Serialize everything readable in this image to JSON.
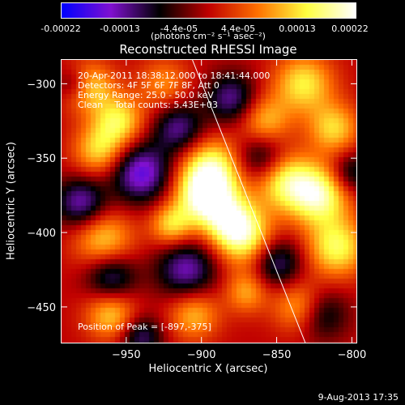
{
  "chart_data": {
    "type": "heatmap",
    "title": "Reconstructed RHESSI Image",
    "xlabel": "Heliocentric X (arcsec)",
    "ylabel": "Heliocentric Y (arcsec)",
    "xlim": [
      -993,
      -797
    ],
    "ylim": [
      -474,
      -284
    ],
    "xticks": [
      -950,
      -900,
      -850,
      -800
    ],
    "yticks": [
      -300,
      -350,
      -400,
      -450
    ],
    "xtick_labels": [
      "−950",
      "−900",
      "−850",
      "−800"
    ],
    "ytick_labels": [
      "−300",
      "−350",
      "−400",
      "−450"
    ],
    "colorbar": {
      "ticks": [
        "-0.00022",
        "-0.00013",
        "-4.4e-05",
        "4.4e-05",
        "0.00013",
        "0.00022"
      ],
      "range": [
        -0.00022,
        0.00022
      ],
      "unit": "(photons cm⁻² s⁻¹ asec⁻²)"
    },
    "annotations": {
      "time": "20-Apr-2011 18:38:12.000 to 18:41:44.000",
      "detectors": "Detectors: 4F 5F 6F 7F 8F, Att 0",
      "energy": "Energy Range: 25.0 - 50.0 keV",
      "clean": "Clean    Total counts: 5.43E+03",
      "peak": "Position of Peak = [-897,-375]"
    },
    "peak": [
      -897,
      -375
    ],
    "limb_line": [
      [
        -906,
        -284
      ],
      [
        -831,
        -474
      ]
    ],
    "colormap": [
      "#0000ff",
      "#8010d0",
      "#000000",
      "#c00000",
      "#ff7000",
      "#ffff40",
      "#ffffff"
    ],
    "blobs": [
      [
        -897,
        -375,
        14,
        1.6
      ],
      [
        -880,
        -393,
        12,
        1.0
      ],
      [
        -893,
        -355,
        14,
        1.0
      ],
      [
        -920,
        -395,
        10,
        0.9
      ],
      [
        -955,
        -325,
        12,
        1.0
      ],
      [
        -968,
        -345,
        12,
        0.9
      ],
      [
        -975,
        -302,
        12,
        0.9
      ],
      [
        -965,
        -405,
        14,
        0.9
      ],
      [
        -845,
        -365,
        14,
        1.1
      ],
      [
        -822,
        -375,
        14,
        1.3
      ],
      [
        -810,
        -410,
        14,
        1.1
      ],
      [
        -832,
        -300,
        14,
        1.0
      ],
      [
        -812,
        -330,
        12,
        0.9
      ],
      [
        -858,
        -325,
        12,
        0.8
      ],
      [
        -870,
        -405,
        14,
        1.0
      ],
      [
        -835,
        -450,
        12,
        0.8
      ],
      [
        -960,
        -455,
        12,
        0.9
      ],
      [
        -905,
        -455,
        12,
        0.8
      ],
      [
        -870,
        -440,
        10,
        0.7
      ],
      [
        -925,
        -300,
        12,
        0.6
      ],
      [
        -940,
        -360,
        14,
        -1.2
      ],
      [
        -915,
        -330,
        12,
        -0.9
      ],
      [
        -960,
        -430,
        12,
        -0.9
      ],
      [
        -880,
        -310,
        12,
        -0.9
      ],
      [
        -910,
        -425,
        14,
        -1.0
      ],
      [
        -860,
        -350,
        12,
        -0.8
      ],
      [
        -980,
        -380,
        12,
        -1.0
      ],
      [
        -850,
        -420,
        12,
        -0.9
      ],
      [
        -820,
        -455,
        12,
        -0.7
      ],
      [
        -800,
        -360,
        10,
        -0.7
      ],
      [
        -940,
        -470,
        10,
        -0.8
      ],
      [
        -985,
        -300,
        8,
        -0.6
      ]
    ]
  },
  "info": {
    "colorbar_unit": "(photons cm⁻² s⁻¹ asec⁻²)",
    "timestamp": "9-Aug-2013 17:35"
  }
}
